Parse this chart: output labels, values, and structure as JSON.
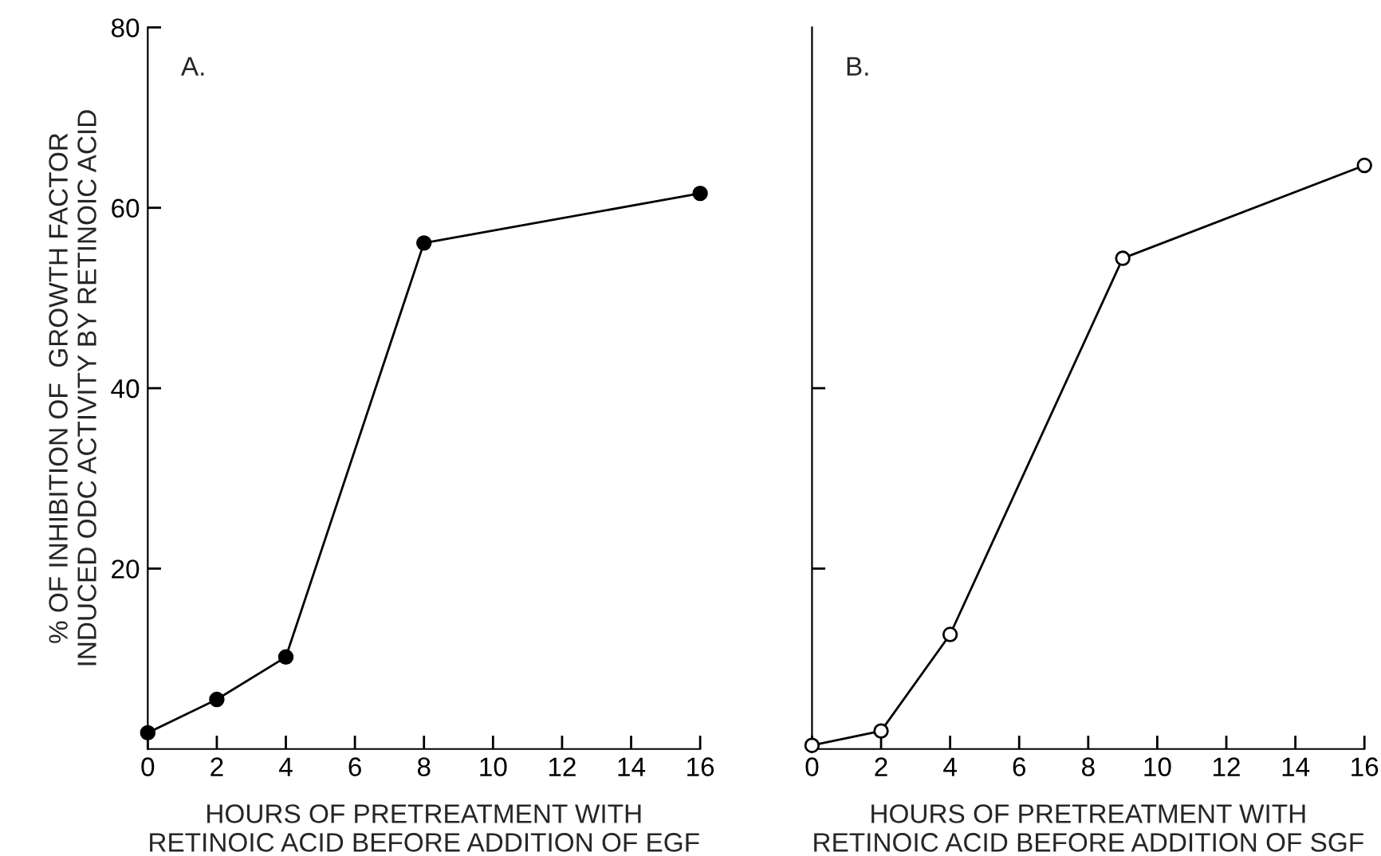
{
  "chart_data": [
    {
      "type": "line",
      "ylabel": "% OF INHIBITION OF  GROWTH FACTOR\nINDUCED ODC ACTIVITY BY RETINOIC ACID",
      "xlabel": "HOURS OF PRETREATMENT WITH\nRETINOIC ACID BEFORE ADDITION OF EGF",
      "annotations": [
        "A."
      ],
      "series": [
        {
          "color": "#000000",
          "x": [
            0,
            2,
            4,
            8,
            16
          ],
          "values": [
            1.8,
            5.5,
            10.2,
            56.1,
            61.6
          ],
          "marker": "circle"
        }
      ],
      "xlim": [
        0,
        16
      ],
      "xticks": [
        0,
        2,
        4,
        6,
        8,
        10,
        12,
        14,
        16
      ],
      "ylim": [
        0,
        80
      ],
      "yticks": [
        20,
        40,
        60,
        80
      ],
      "line_style": "solid",
      "grid": false,
      "legend": false
    },
    {
      "type": "line",
      "xlabel": "HOURS OF PRETREATMENT WITH\nRETINOIC ACID BEFORE ADDITION OF SGF",
      "annotations": [
        "B."
      ],
      "series": [
        {
          "color": "#000000",
          "x": [
            0,
            2,
            4,
            9,
            16
          ],
          "values": [
            0.4,
            2.0,
            12.7,
            54.4,
            64.7
          ],
          "marker": "circle"
        }
      ],
      "xlim": [
        0,
        16
      ],
      "xticks": [
        0,
        2,
        4,
        6,
        8,
        10,
        12,
        14,
        16
      ],
      "ylim": [
        0,
        80
      ],
      "yticks": [
        {
          "value": 20,
          "label": null
        },
        {
          "value": 40,
          "label": null
        }
      ],
      "tick_labels": "x",
      "line_style": "solid",
      "grid": false,
      "legend": false
    }
  ]
}
